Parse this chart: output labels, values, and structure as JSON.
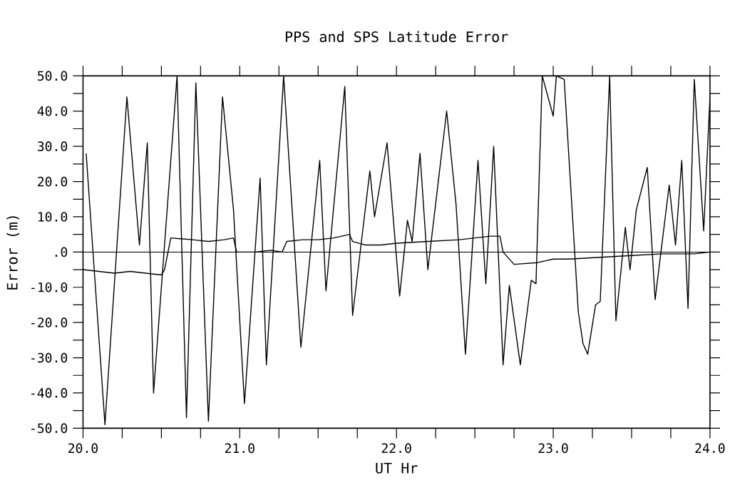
{
  "chart_data": {
    "type": "line",
    "title": "PPS and SPS Latitude Error",
    "xlabel": "UT Hr",
    "ylabel": "Error (m)",
    "xlim": [
      20,
      24
    ],
    "ylim": [
      -50,
      50
    ],
    "xticks": [
      {
        "value": 20,
        "label": "20.0"
      },
      {
        "value": 20.25,
        "label": null
      },
      {
        "value": 20.5,
        "label": null
      },
      {
        "value": 20.75,
        "label": null
      },
      {
        "value": 21,
        "label": "21.0"
      },
      {
        "value": 21.25,
        "label": null
      },
      {
        "value": 21.5,
        "label": null
      },
      {
        "value": 21.75,
        "label": null
      },
      {
        "value": 22,
        "label": "22.0"
      },
      {
        "value": 22.25,
        "label": null
      },
      {
        "value": 22.5,
        "label": null
      },
      {
        "value": 22.75,
        "label": null
      },
      {
        "value": 23,
        "label": "23.0"
      },
      {
        "value": 23.25,
        "label": null
      },
      {
        "value": 23.5,
        "label": null
      },
      {
        "value": 23.75,
        "label": null
      },
      {
        "value": 24,
        "label": "24.0"
      }
    ],
    "yticks": [
      {
        "value": -50,
        "label": "-50.0"
      },
      {
        "value": -45,
        "label": null
      },
      {
        "value": -40,
        "label": "-40.0"
      },
      {
        "value": -35,
        "label": null
      },
      {
        "value": -30,
        "label": "-30.0"
      },
      {
        "value": -25,
        "label": null
      },
      {
        "value": -20,
        "label": "-20.0"
      },
      {
        "value": -15,
        "label": null
      },
      {
        "value": -10,
        "label": "-10.0"
      },
      {
        "value": -5,
        "label": null
      },
      {
        "value": 0,
        "label": ".0"
      },
      {
        "value": 5,
        "label": null
      },
      {
        "value": 10,
        "label": "10.0"
      },
      {
        "value": 15,
        "label": null
      },
      {
        "value": 20,
        "label": "20.0"
      },
      {
        "value": 25,
        "label": null
      },
      {
        "value": 30,
        "label": "30.0"
      },
      {
        "value": 35,
        "label": null
      },
      {
        "value": 40,
        "label": "40.0"
      },
      {
        "value": 45,
        "label": null
      },
      {
        "value": 50,
        "label": "50.0"
      }
    ],
    "marker": "none",
    "line_style": "solid",
    "ref_lines": [
      {
        "axis": "y",
        "value": 0,
        "color": "#000000"
      }
    ],
    "series": [
      {
        "color": "#000000",
        "x": [
          20.02,
          20.14,
          20.28,
          20.36,
          20.41,
          20.45,
          20.6,
          20.66,
          20.72,
          20.8,
          20.89,
          20.96,
          21.03,
          21.13,
          21.17,
          21.28,
          21.39,
          21.51,
          21.55,
          21.67,
          21.72,
          21.83,
          21.86,
          21.94,
          22.02,
          22.07,
          22.1,
          22.15,
          22.2,
          22.32,
          22.38,
          22.44,
          22.52,
          22.57,
          22.62,
          22.68,
          22.72,
          22.79,
          22.86,
          22.89,
          22.93,
          23.0,
          23.02,
          23.07,
          23.16,
          23.19,
          23.22,
          23.27,
          23.3,
          23.36,
          23.4,
          23.46,
          23.49,
          23.53,
          23.6,
          23.65,
          23.69,
          23.74,
          23.78,
          23.82,
          23.86,
          23.9,
          23.96,
          24.0
        ],
        "values": [
          28,
          -49,
          44,
          2,
          31,
          -40,
          50,
          -47,
          48,
          -48,
          44,
          12,
          -43,
          21,
          -32,
          50,
          -27,
          26,
          -11,
          47,
          -18,
          23,
          10,
          31,
          -12.5,
          9,
          3,
          28,
          -5,
          40,
          13.5,
          -29,
          26,
          -9,
          30,
          -32,
          -9.5,
          -32,
          -8,
          -9,
          50,
          38.6,
          50,
          49,
          -17,
          -26,
          -29,
          -15,
          -14,
          50,
          -19.5,
          7,
          -5,
          12,
          24,
          -13.5,
          1,
          19,
          2,
          26,
          -16,
          49,
          6,
          44
        ]
      },
      {
        "color": "#000000",
        "x": [
          20.0,
          20.1,
          20.2,
          20.3,
          20.4,
          20.5,
          20.52,
          20.56,
          20.7,
          20.8,
          20.9,
          20.96,
          20.98,
          21.1,
          21.2,
          21.27,
          21.3,
          21.4,
          21.5,
          21.6,
          21.7,
          21.72,
          21.8,
          21.9,
          22.0,
          22.2,
          22.4,
          22.6,
          22.66,
          22.68,
          22.75,
          22.9,
          23.0,
          23.1,
          23.3,
          23.5,
          23.7,
          23.9,
          24.0
        ],
        "values": [
          -5,
          -5.5,
          -6,
          -5.5,
          -6,
          -6.5,
          -5,
          4,
          3.5,
          3,
          3.5,
          4,
          0,
          0,
          0.5,
          0,
          3,
          3.5,
          3.5,
          4,
          5,
          3,
          2,
          2,
          2.5,
          3,
          3.5,
          4.5,
          4.5,
          0,
          -3.5,
          -3,
          -2,
          -2,
          -1.5,
          -1,
          -0.5,
          -0.5,
          0
        ]
      }
    ]
  }
}
